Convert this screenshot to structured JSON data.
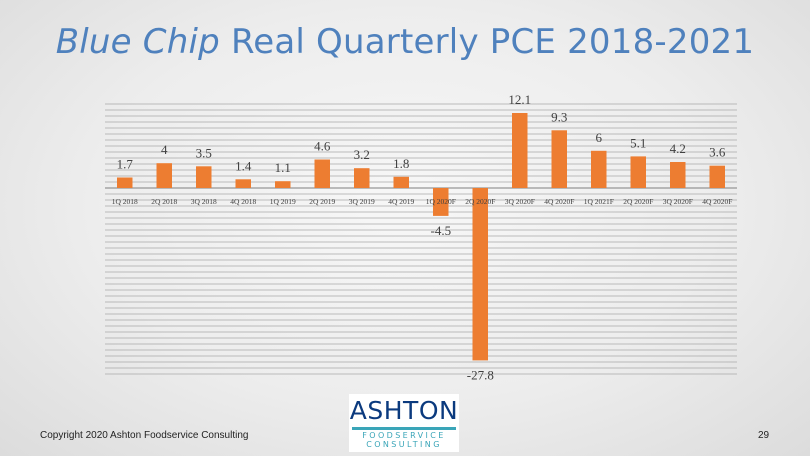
{
  "slide": {
    "title_em": "Blue Chip",
    "title_rest": "Real Quarterly PCE 2018-2021",
    "footer": "Copyright 2020 Ashton Foodservice Consulting",
    "page_number": "29",
    "logo": {
      "word": "ASHTON",
      "line1": "FOODSERVICE",
      "line2": "CONSULTING"
    }
  },
  "chart_data": {
    "type": "bar",
    "categories": [
      "1Q 2018",
      "2Q 2018",
      "3Q 2018",
      "4Q 2018",
      "1Q 2019",
      "2Q 2019",
      "3Q 2019",
      "4Q 2019",
      "1Q 2020F",
      "2Q 2020F",
      "3Q 2020F",
      "4Q 2020F",
      "1Q 2021F",
      "2Q 2020F",
      "3Q 2020F",
      "4Q 2020F"
    ],
    "values": [
      1.7,
      4,
      3.5,
      1.4,
      1.1,
      4.6,
      3.2,
      1.8,
      -4.5,
      -27.8,
      12.1,
      9.3,
      6,
      5.1,
      4.2,
      3.6
    ],
    "data_labels": [
      "1.7",
      "4",
      "3.5",
      "1.4",
      "1.1",
      "4.6",
      "3.2",
      "1.8",
      "-4.5",
      "-27.8",
      "12.1",
      "9.3",
      "6",
      "5.1",
      "4.2",
      "3.6"
    ],
    "bar_color": "#ed7d31",
    "ylim": [
      -30,
      14
    ],
    "grid": true,
    "legend": "none"
  }
}
